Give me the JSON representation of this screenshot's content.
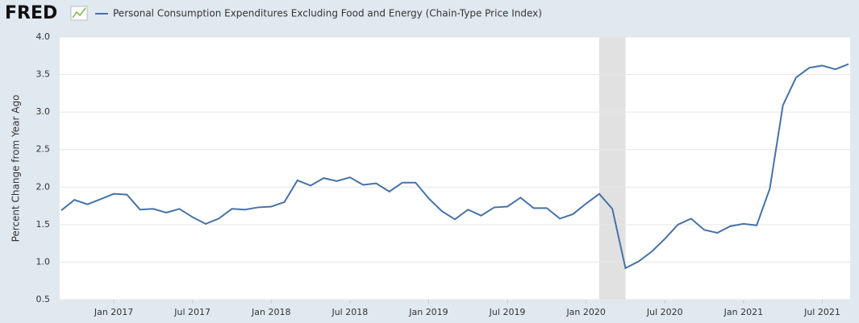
{
  "logo": "FRED",
  "chart_data": {
    "type": "line",
    "x": [
      "2016-09",
      "2016-10",
      "2016-11",
      "2016-12",
      "2017-01",
      "2017-02",
      "2017-03",
      "2017-04",
      "2017-05",
      "2017-06",
      "2017-07",
      "2017-08",
      "2017-09",
      "2017-10",
      "2017-11",
      "2017-12",
      "2018-01",
      "2018-02",
      "2018-03",
      "2018-04",
      "2018-05",
      "2018-06",
      "2018-07",
      "2018-08",
      "2018-09",
      "2018-10",
      "2018-11",
      "2018-12",
      "2019-01",
      "2019-02",
      "2019-03",
      "2019-04",
      "2019-05",
      "2019-06",
      "2019-07",
      "2019-08",
      "2019-09",
      "2019-10",
      "2019-11",
      "2019-12",
      "2020-01",
      "2020-02",
      "2020-03",
      "2020-04",
      "2020-05",
      "2020-06",
      "2020-07",
      "2020-08",
      "2020-09",
      "2020-10",
      "2020-11",
      "2020-12",
      "2021-01",
      "2021-02",
      "2021-03",
      "2021-04",
      "2021-05",
      "2021-06",
      "2021-07",
      "2021-08",
      "2021-09"
    ],
    "series": [
      {
        "name": "Personal Consumption Expenditures Excluding Food and Energy (Chain-Type Price Index)",
        "color": "#4572a7",
        "values": [
          1.69,
          1.83,
          1.77,
          1.84,
          1.91,
          1.9,
          1.7,
          1.71,
          1.66,
          1.71,
          1.6,
          1.51,
          1.58,
          1.71,
          1.7,
          1.73,
          1.74,
          1.8,
          2.09,
          2.02,
          2.12,
          2.08,
          2.13,
          2.03,
          2.05,
          1.94,
          2.06,
          2.06,
          1.85,
          1.68,
          1.57,
          1.7,
          1.62,
          1.73,
          1.74,
          1.86,
          1.72,
          1.72,
          1.58,
          1.64,
          1.78,
          1.91,
          1.71,
          0.92,
          1.01,
          1.14,
          1.31,
          1.5,
          1.58,
          1.43,
          1.39,
          1.48,
          1.51,
          1.49,
          1.98,
          3.09,
          3.46,
          3.59,
          3.62,
          3.57,
          3.64
        ]
      }
    ],
    "ylabel": "Percent Change from Year Ago",
    "xlim": [
      "2016-09",
      "2021-09"
    ],
    "ylim": [
      0.5,
      4.0
    ],
    "yticks": [
      0.5,
      {
        "value": 1,
        "label": "1.0"
      },
      1.5,
      {
        "value": 2,
        "label": "2.0"
      },
      2.5,
      {
        "value": 3,
        "label": "3.0"
      },
      3.5,
      {
        "value": 4,
        "label": "4.0"
      }
    ],
    "xticks": [
      {
        "value": "2017-01",
        "label": "Jan 2017"
      },
      {
        "value": "2017-07",
        "label": "Jul 2017"
      },
      {
        "value": "2018-01",
        "label": "Jan 2018"
      },
      {
        "value": "2018-07",
        "label": "Jul 2018"
      },
      {
        "value": "2019-01",
        "label": "Jan 2019"
      },
      {
        "value": "2019-07",
        "label": "Jul 2019"
      },
      {
        "value": "2020-01",
        "label": "Jan 2020"
      },
      {
        "value": "2020-07",
        "label": "Jul 2020"
      },
      {
        "value": "2021-01",
        "label": "Jan 2021"
      },
      {
        "value": "2021-07",
        "label": "Jul 2021"
      }
    ],
    "recessions": [
      {
        "start": "2020-02",
        "end": "2020-04"
      }
    ],
    "grid": true
  }
}
